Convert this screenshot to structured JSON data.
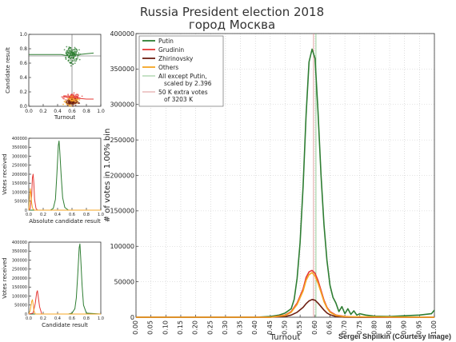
{
  "page": {
    "title_line1": "Russia President election 2018",
    "title_line2": "город Москва",
    "credit": "Sergei Shpilkin (Courtesy Image)"
  },
  "colors": {
    "putin": "#2e7d32",
    "grudinin": "#e53935",
    "zhirinovsky": "#6d1f12",
    "others": "#f5a623",
    "scaled": "#7fbf7f",
    "extra": "#d88a8a"
  },
  "chart_data": [
    {
      "id": "main",
      "type": "line",
      "xlabel": "Turnout",
      "ylabel": "# of votes in 1.00% bin",
      "xlim": [
        0,
        1
      ],
      "ylim": [
        0,
        400000
      ],
      "xticks": [
        "0.00",
        "0.05",
        "0.10",
        "0.15",
        "0.20",
        "0.25",
        "0.30",
        "0.35",
        "0.40",
        "0.45",
        "0.50",
        "0.55",
        "0.60",
        "0.65",
        "0.70",
        "0.75",
        "0.80",
        "0.85",
        "0.90",
        "0.95",
        "1.00"
      ],
      "yticks": [
        "0",
        "50000",
        "100000",
        "150000",
        "200000",
        "250000",
        "300000",
        "350000",
        "400000"
      ],
      "grid": true,
      "legend_position": "top-left",
      "legend": [
        {
          "label": "Putin",
          "color_key": "putin"
        },
        {
          "label": "Grudinin",
          "color_key": "grudinin"
        },
        {
          "label": "Zhirinovsky",
          "color_key": "zhirinovsky"
        },
        {
          "label": "Others",
          "color_key": "others"
        },
        {
          "label": "All except Putin,",
          "label2": "scaled by 2.396",
          "color_key": "scaled"
        },
        {
          "label": "50 K extra votes",
          "label2": "of 3203 K",
          "color_key": "extra"
        }
      ],
      "vline_x": 0.595,
      "series": [
        {
          "name": "Putin",
          "color_key": "putin",
          "x": [
            0.0,
            0.4,
            0.45,
            0.48,
            0.5,
            0.52,
            0.53,
            0.54,
            0.55,
            0.56,
            0.57,
            0.58,
            0.59,
            0.6,
            0.61,
            0.62,
            0.63,
            0.64,
            0.65,
            0.66,
            0.67,
            0.68,
            0.69,
            0.7,
            0.71,
            0.72,
            0.73,
            0.74,
            0.75,
            0.77,
            0.8,
            0.85,
            0.9,
            0.95,
            0.99,
            1.0
          ],
          "y": [
            0,
            0,
            1000,
            3000,
            6000,
            12000,
            25000,
            55000,
            105000,
            185000,
            285000,
            360000,
            378000,
            365000,
            290000,
            200000,
            130000,
            80000,
            45000,
            28000,
            20000,
            8000,
            15000,
            5000,
            12000,
            4000,
            9000,
            3000,
            5000,
            3000,
            1500,
            1000,
            2000,
            3000,
            5000,
            10000
          ]
        },
        {
          "name": "Grudinin",
          "color_key": "grudinin",
          "x": [
            0.0,
            0.45,
            0.5,
            0.52,
            0.54,
            0.56,
            0.57,
            0.58,
            0.59,
            0.6,
            0.61,
            0.62,
            0.63,
            0.64,
            0.65,
            0.67,
            0.7,
            0.75,
            1.0
          ],
          "y": [
            0,
            0,
            3000,
            8000,
            20000,
            40000,
            56000,
            64000,
            66000,
            62000,
            52000,
            38000,
            24000,
            14000,
            8000,
            3000,
            1000,
            0,
            0
          ]
        },
        {
          "name": "Zhirinovsky",
          "color_key": "zhirinovsky",
          "x": [
            0.0,
            0.45,
            0.5,
            0.52,
            0.54,
            0.56,
            0.57,
            0.58,
            0.59,
            0.6,
            0.61,
            0.62,
            0.63,
            0.64,
            0.65,
            0.67,
            0.7,
            1.0
          ],
          "y": [
            0,
            0,
            1000,
            3000,
            7000,
            14000,
            19000,
            23000,
            25000,
            24000,
            20000,
            15000,
            10000,
            6000,
            3500,
            1000,
            0,
            0
          ]
        },
        {
          "name": "Others",
          "color_key": "others",
          "x": [
            0.0,
            0.45,
            0.5,
            0.52,
            0.54,
            0.56,
            0.57,
            0.58,
            0.59,
            0.6,
            0.61,
            0.62,
            0.63,
            0.64,
            0.65,
            0.67,
            0.7,
            1.0
          ],
          "y": [
            0,
            0,
            2500,
            7000,
            18000,
            37000,
            52000,
            60000,
            63000,
            58000,
            48000,
            35000,
            22000,
            13000,
            7000,
            2500,
            800,
            0
          ]
        }
      ]
    },
    {
      "id": "scatter",
      "type": "scatter",
      "xlabel": "Turnout",
      "ylabel": "Candidate result",
      "xlim": [
        0,
        1
      ],
      "ylim": [
        0,
        1
      ],
      "xticks": [
        "0.0",
        "0.2",
        "0.4",
        "0.6",
        "0.8",
        "1.0"
      ],
      "yticks": [
        "0.0",
        "0.2",
        "0.4",
        "0.6",
        "0.8",
        "1.0"
      ],
      "hline_y": 0.7,
      "vline_x": 0.6,
      "clusters": [
        {
          "color_key": "putin",
          "cx": 0.6,
          "cy": 0.71,
          "sx": 0.04,
          "sy": 0.05,
          "n": 140
        },
        {
          "color_key": "grudinin",
          "cx": 0.6,
          "cy": 0.12,
          "sx": 0.05,
          "sy": 0.03,
          "n": 90
        },
        {
          "color_key": "others",
          "cx": 0.6,
          "cy": 0.07,
          "sx": 0.05,
          "sy": 0.03,
          "n": 90
        },
        {
          "color_key": "zhirinovsky",
          "cx": 0.6,
          "cy": 0.05,
          "sx": 0.04,
          "sy": 0.02,
          "n": 60
        }
      ],
      "trend_lines": [
        {
          "color_key": "putin",
          "x": [
            0.0,
            0.45,
            0.55,
            0.62,
            0.7,
            0.8,
            0.9
          ],
          "y": [
            0.72,
            0.72,
            0.7,
            0.71,
            0.72,
            0.73,
            0.74
          ]
        },
        {
          "color_key": "grudinin",
          "x": [
            0.45,
            0.55,
            0.62,
            0.7,
            0.8,
            0.9
          ],
          "y": [
            0.13,
            0.13,
            0.12,
            0.11,
            0.1,
            0.1
          ]
        }
      ]
    },
    {
      "id": "abs",
      "type": "line",
      "xlabel": "Absolute candidate result",
      "ylabel": "Votes received",
      "xlim": [
        0,
        1
      ],
      "ylim": [
        0,
        400000
      ],
      "xticks": [
        "0.0",
        "0.2",
        "0.4",
        "0.6",
        "0.8",
        "1.0"
      ],
      "yticks": [
        "0",
        "50000",
        "100000",
        "150000",
        "200000",
        "250000",
        "300000",
        "350000",
        "400000"
      ],
      "series": [
        {
          "name": "Putin",
          "color_key": "putin",
          "x": [
            0.0,
            0.3,
            0.34,
            0.37,
            0.39,
            0.41,
            0.42,
            0.43,
            0.45,
            0.47,
            0.5,
            0.55,
            1.0
          ],
          "y": [
            0,
            0,
            10000,
            60000,
            200000,
            360000,
            385000,
            330000,
            190000,
            70000,
            15000,
            0,
            0
          ]
        },
        {
          "name": "Grudinin",
          "color_key": "grudinin",
          "x": [
            0.0,
            0.02,
            0.04,
            0.05,
            0.06,
            0.07,
            0.08,
            0.1,
            0.12,
            1.0
          ],
          "y": [
            0,
            10000,
            80000,
            180000,
            200000,
            150000,
            60000,
            10000,
            0,
            0
          ]
        },
        {
          "name": "Others",
          "color_key": "others",
          "x": [
            0.0,
            0.01,
            0.02,
            0.03,
            0.04,
            0.05,
            0.06,
            0.08,
            1.0
          ],
          "y": [
            0,
            60000,
            120000,
            90000,
            40000,
            15000,
            5000,
            0,
            0
          ]
        }
      ]
    },
    {
      "id": "rel",
      "type": "line",
      "xlabel": "Candidate result",
      "ylabel": "Votes received",
      "xlim": [
        0,
        1
      ],
      "ylim": [
        0,
        400000
      ],
      "xticks": [
        "0.0",
        "0.2",
        "0.4",
        "0.6",
        "0.8",
        "1.0"
      ],
      "yticks": [
        "0",
        "50000",
        "100000",
        "150000",
        "200000",
        "250000",
        "300000",
        "350000",
        "400000"
      ],
      "series": [
        {
          "name": "Putin",
          "color_key": "putin",
          "x": [
            0.0,
            0.55,
            0.6,
            0.64,
            0.66,
            0.68,
            0.7,
            0.71,
            0.72,
            0.74,
            0.76,
            0.8,
            1.0
          ],
          "y": [
            0,
            0,
            5000,
            30000,
            90000,
            220000,
            370000,
            390000,
            320000,
            160000,
            50000,
            5000,
            0
          ]
        },
        {
          "name": "Grudinin",
          "color_key": "grudinin",
          "x": [
            0.0,
            0.06,
            0.09,
            0.11,
            0.12,
            0.13,
            0.15,
            0.18,
            1.0
          ],
          "y": [
            0,
            5000,
            60000,
            120000,
            130000,
            100000,
            40000,
            0,
            0
          ]
        },
        {
          "name": "Others",
          "color_key": "others",
          "x": [
            0.0,
            0.02,
            0.04,
            0.05,
            0.06,
            0.07,
            0.09,
            1.0
          ],
          "y": [
            0,
            20000,
            70000,
            80000,
            55000,
            20000,
            0,
            0
          ]
        }
      ]
    }
  ]
}
